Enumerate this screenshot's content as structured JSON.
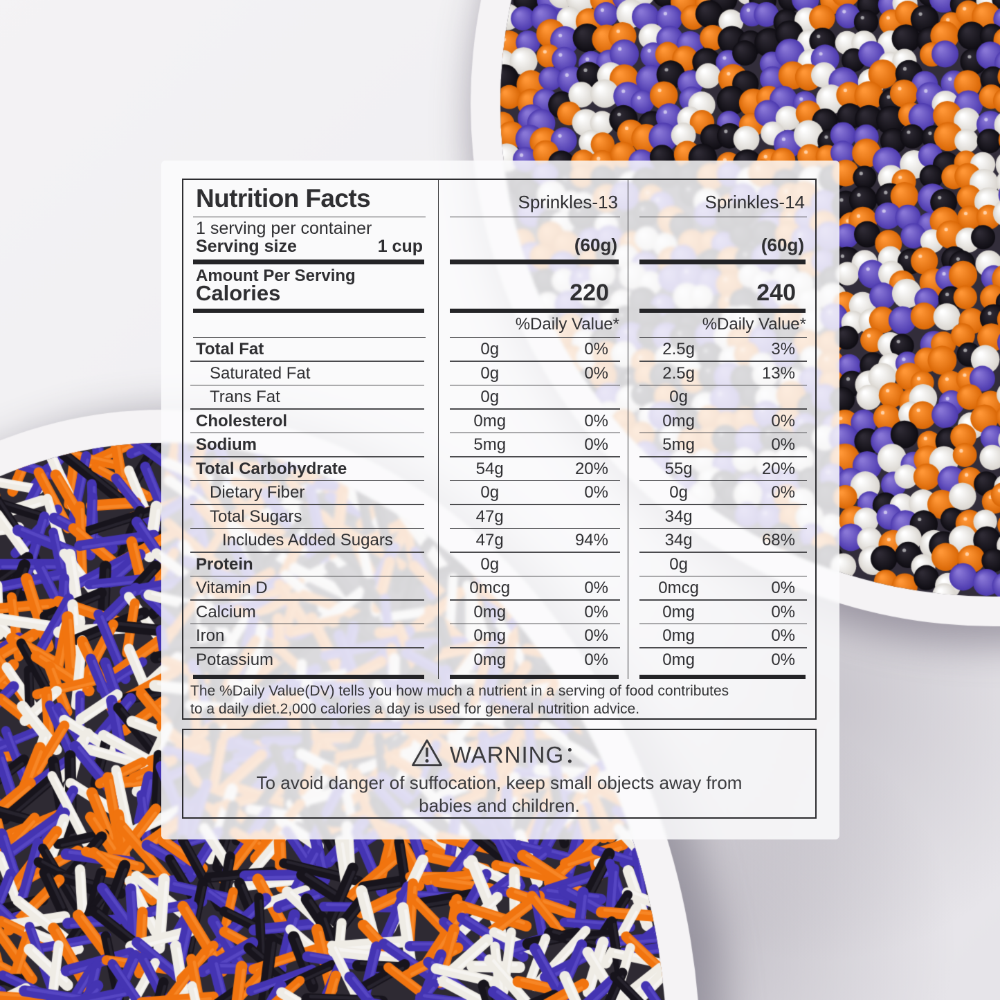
{
  "label": {
    "title": "Nutrition Facts",
    "servings_per_container": "1 serving per container",
    "serving_size_label": "Serving size",
    "serving_size_value": "1 cup",
    "amount_per_serving": "Amount Per Serving",
    "calories_label": "Calories",
    "daily_value_header": "%Daily Value*",
    "products": [
      {
        "name": "Sprinkles-13",
        "weight": "(60g)",
        "calories": "220"
      },
      {
        "name": "Sprinkles-14",
        "weight": "(60g)",
        "calories": "240"
      }
    ],
    "rows": [
      {
        "label": "Total Fat",
        "bold": true,
        "indent": 0,
        "v1": "0g",
        "p1": "0%",
        "v2": "2.5g",
        "p2": "3%"
      },
      {
        "label": "Saturated Fat",
        "bold": false,
        "indent": 1,
        "v1": "0g",
        "p1": "0%",
        "v2": "2.5g",
        "p2": "13%"
      },
      {
        "label": "Trans Fat",
        "bold": false,
        "indent": 1,
        "v1": "0g",
        "p1": "",
        "v2": "0g",
        "p2": ""
      },
      {
        "label": "Cholesterol",
        "bold": true,
        "indent": 0,
        "v1": "0mg",
        "p1": "0%",
        "v2": "0mg",
        "p2": "0%"
      },
      {
        "label": "Sodium",
        "bold": true,
        "indent": 0,
        "v1": "5mg",
        "p1": "0%",
        "v2": "5mg",
        "p2": "0%"
      },
      {
        "label": "Total Carbohydrate",
        "bold": true,
        "indent": 0,
        "v1": "54g",
        "p1": "20%",
        "v2": "55g",
        "p2": "20%"
      },
      {
        "label": "Dietary Fiber",
        "bold": false,
        "indent": 1,
        "v1": "0g",
        "p1": "0%",
        "v2": "0g",
        "p2": "0%"
      },
      {
        "label": "Total Sugars",
        "bold": false,
        "indent": 1,
        "v1": "47g",
        "p1": "",
        "v2": "34g",
        "p2": ""
      },
      {
        "label": "Includes Added Sugars",
        "bold": false,
        "indent": 2,
        "v1": "47g",
        "p1": "94%",
        "v2": "34g",
        "p2": "68%"
      },
      {
        "label": "Protein",
        "bold": true,
        "indent": 0,
        "v1": "0g",
        "p1": "",
        "v2": "0g",
        "p2": ""
      },
      {
        "label": "Vitamin D",
        "bold": false,
        "indent": 0,
        "v1": "0mcg",
        "p1": "0%",
        "v2": "0mcg",
        "p2": "0%"
      },
      {
        "label": "Calcium",
        "bold": false,
        "indent": 0,
        "v1": "0mg",
        "p1": "0%",
        "v2": "0mg",
        "p2": "0%"
      },
      {
        "label": "Iron",
        "bold": false,
        "indent": 0,
        "v1": "0mg",
        "p1": "0%",
        "v2": "0mg",
        "p2": "0%"
      },
      {
        "label": "Potassium",
        "bold": false,
        "indent": 0,
        "v1": "0mg",
        "p1": "0%",
        "v2": "0mg",
        "p2": "0%"
      }
    ],
    "footnote_line1": "The %Daily Value(DV) tells you how much a nutrient in a serving of food contributes",
    "footnote_line2": "to a daily diet.2,000 calories a day is used for general nutrition advice."
  },
  "warning": {
    "title": "WARNING：",
    "body_line1": "To avoid danger of suffocation, keep small objects away from",
    "body_line2": "babies and children."
  },
  "photo": {
    "ink": "#2f2f32",
    "background_top": "#f4f3f5",
    "background_bottom": "#e6e4e9",
    "bowl_color": "#f5f3f5",
    "ball_colors": [
      "#f5811c",
      "#6a54c6",
      "#1b1820",
      "#f4f1ed"
    ],
    "rod_colors": [
      "#f1740f",
      "#4434b2",
      "#17141c",
      "#efece5"
    ]
  }
}
